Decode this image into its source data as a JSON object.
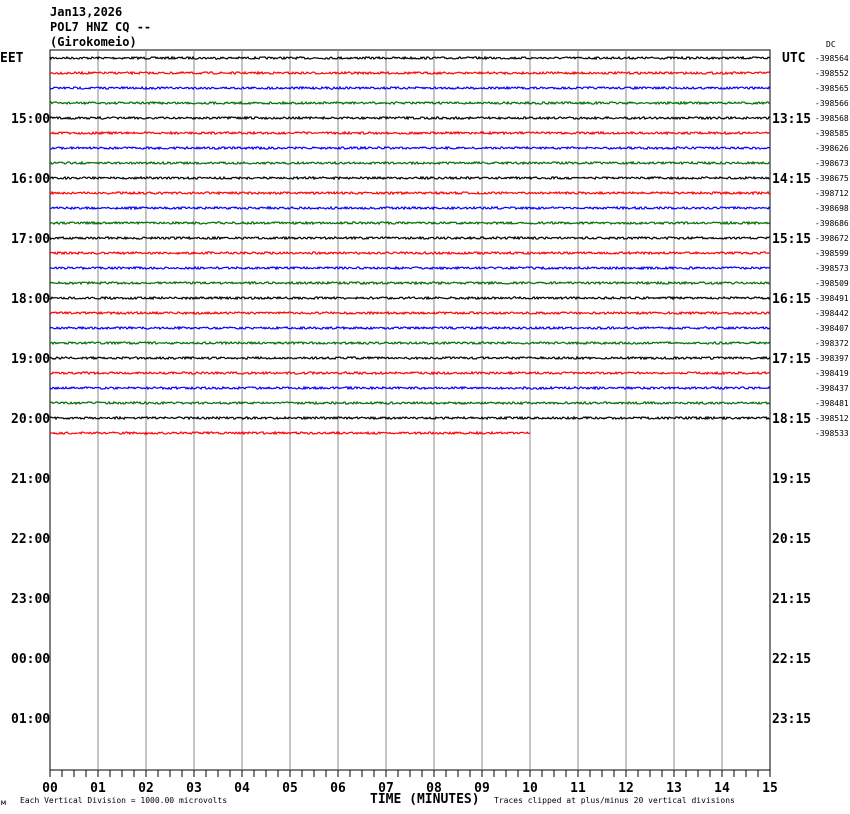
{
  "header": {
    "date": "Jan13,2026",
    "station": "POL7 HNZ CQ --",
    "location": "(Girokomeio)"
  },
  "chart_data": {
    "type": "line",
    "title": "Jan13,2026 POL7 HNZ CQ -- (Girokomeio)",
    "left_timezone": "EET",
    "right_timezone": "UTC",
    "dc_label": "DC",
    "xlabel": "TIME (MINUTES)",
    "x_ticks": [
      "00",
      "01",
      "02",
      "03",
      "04",
      "05",
      "06",
      "07",
      "08",
      "09",
      "10",
      "11",
      "12",
      "13",
      "14",
      "15"
    ],
    "xlim": [
      0,
      15
    ],
    "left_hour_labels": [
      "15:00",
      "16:00",
      "17:00",
      "18:00",
      "19:00",
      "20:00",
      "21:00",
      "22:00",
      "23:00",
      "00:00",
      "01:00"
    ],
    "right_hour_labels": [
      "13:15",
      "14:15",
      "15:15",
      "16:15",
      "17:15",
      "18:15",
      "19:15",
      "20:15",
      "21:15",
      "22:15",
      "23:15"
    ],
    "trace_colors": [
      "#000000",
      "#ff0000",
      "#0000ff",
      "#007000"
    ],
    "trace_offsets": [
      "-398564",
      "-398552",
      "-398565",
      "-398566",
      "-398568",
      "-398585",
      "-398626",
      "-398673",
      "-398675",
      "-398712",
      "-398698",
      "-398686",
      "-398672",
      "-398599",
      "-398573",
      "-398509",
      "-398491",
      "-398442",
      "-398407",
      "-398372",
      "-398397",
      "-398419",
      "-398437",
      "-398481",
      "-398512",
      "-398533"
    ],
    "last_trace_end_minute": 10,
    "grid": true,
    "footer_left": "Each Vertical Division = 1000.00 microvolts",
    "footer_right": "Traces clipped at plus/minus 20 vertical divisions",
    "corner_mark": "м"
  }
}
